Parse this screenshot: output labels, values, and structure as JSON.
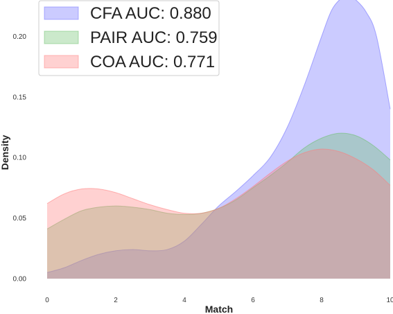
{
  "chart_data": {
    "type": "area",
    "title": "",
    "xlabel": "Match",
    "ylabel": "Density",
    "xlim": [
      0,
      10
    ],
    "ylim": [
      0,
      0.23
    ],
    "xticks": [
      "0",
      "2",
      "4",
      "6",
      "8",
      "10"
    ],
    "yticks": [
      "0.00",
      "0.05",
      "0.10",
      "0.15",
      "0.20"
    ],
    "grid": false,
    "legend_position": "top-left",
    "series": [
      {
        "name": "CFA AUC: 0.880",
        "color": "#6b6bff",
        "x": [
          0,
          0.5,
          1,
          1.5,
          2,
          2.5,
          3,
          3.5,
          4,
          4.5,
          5,
          5.5,
          6,
          6.5,
          7,
          7.5,
          8,
          8.3,
          8.6,
          8.8,
          9,
          9.3,
          9.6,
          10
        ],
        "y": [
          0.005,
          0.009,
          0.015,
          0.02,
          0.023,
          0.024,
          0.023,
          0.024,
          0.031,
          0.045,
          0.06,
          0.072,
          0.085,
          0.1,
          0.125,
          0.16,
          0.2,
          0.222,
          0.232,
          0.233,
          0.23,
          0.22,
          0.2,
          0.14
        ]
      },
      {
        "name": "PAIR AUC: 0.759",
        "color": "#6abf69",
        "x": [
          0,
          0.5,
          1,
          1.5,
          2,
          2.5,
          3,
          3.5,
          4,
          4.5,
          5,
          5.5,
          6,
          6.5,
          7,
          7.5,
          8,
          8.5,
          9,
          9.5,
          10
        ],
        "y": [
          0.041,
          0.049,
          0.056,
          0.059,
          0.06,
          0.059,
          0.057,
          0.054,
          0.053,
          0.054,
          0.058,
          0.065,
          0.075,
          0.085,
          0.096,
          0.108,
          0.116,
          0.12,
          0.118,
          0.11,
          0.098
        ]
      },
      {
        "name": "COA AUC: 0.771",
        "color": "#ff7b7b",
        "x": [
          0,
          0.5,
          1,
          1.5,
          2,
          2.5,
          3,
          3.5,
          4,
          4.5,
          5,
          5.5,
          6,
          6.5,
          7,
          7.5,
          8,
          8.5,
          9,
          9.5,
          10
        ],
        "y": [
          0.062,
          0.07,
          0.074,
          0.074,
          0.071,
          0.066,
          0.061,
          0.057,
          0.054,
          0.054,
          0.058,
          0.066,
          0.076,
          0.087,
          0.097,
          0.104,
          0.107,
          0.105,
          0.099,
          0.09,
          0.077
        ]
      }
    ]
  }
}
